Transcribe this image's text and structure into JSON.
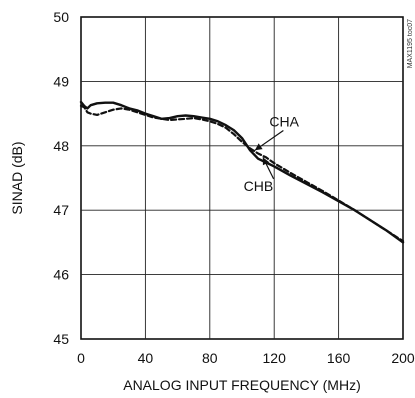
{
  "chart_data": {
    "type": "line",
    "title": "",
    "xlabel": "ANALOG INPUT FREQUENCY (MHz)",
    "ylabel": "SINAD (dB)",
    "xlim": [
      0,
      200
    ],
    "ylim": [
      45,
      50
    ],
    "x_ticks": [
      0,
      40,
      80,
      120,
      160,
      200
    ],
    "y_ticks": [
      45,
      46,
      47,
      48,
      49,
      50
    ],
    "grid": true,
    "watermark": "MAX1195 toc07",
    "series": [
      {
        "name": "CHA",
        "style": "dashed",
        "color": "#111111",
        "points": [
          [
            0,
            48.62
          ],
          [
            2,
            48.6
          ],
          [
            4,
            48.52
          ],
          [
            6,
            48.5
          ],
          [
            10,
            48.48
          ],
          [
            15,
            48.52
          ],
          [
            20,
            48.56
          ],
          [
            25,
            48.58
          ],
          [
            30,
            48.56
          ],
          [
            35,
            48.52
          ],
          [
            40,
            48.48
          ],
          [
            45,
            48.44
          ],
          [
            50,
            48.42
          ],
          [
            55,
            48.4
          ],
          [
            60,
            48.41
          ],
          [
            65,
            48.42
          ],
          [
            70,
            48.43
          ],
          [
            75,
            48.41
          ],
          [
            80,
            48.38
          ],
          [
            85,
            48.34
          ],
          [
            90,
            48.28
          ],
          [
            95,
            48.18
          ],
          [
            100,
            48.06
          ],
          [
            105,
            47.96
          ],
          [
            110,
            47.88
          ],
          [
            115,
            47.82
          ],
          [
            120,
            47.73
          ],
          [
            130,
            47.58
          ],
          [
            140,
            47.44
          ],
          [
            150,
            47.3
          ],
          [
            160,
            47.15
          ],
          [
            170,
            47.0
          ],
          [
            180,
            46.84
          ],
          [
            190,
            46.68
          ],
          [
            200,
            46.52
          ]
        ]
      },
      {
        "name": "CHB",
        "style": "solid",
        "color": "#111111",
        "points": [
          [
            0,
            48.68
          ],
          [
            2,
            48.62
          ],
          [
            4,
            48.58
          ],
          [
            6,
            48.63
          ],
          [
            10,
            48.66
          ],
          [
            15,
            48.67
          ],
          [
            20,
            48.67
          ],
          [
            25,
            48.63
          ],
          [
            30,
            48.58
          ],
          [
            35,
            48.55
          ],
          [
            40,
            48.5
          ],
          [
            45,
            48.46
          ],
          [
            50,
            48.42
          ],
          [
            55,
            48.43
          ],
          [
            60,
            48.46
          ],
          [
            65,
            48.47
          ],
          [
            70,
            48.46
          ],
          [
            75,
            48.44
          ],
          [
            80,
            48.42
          ],
          [
            85,
            48.38
          ],
          [
            90,
            48.32
          ],
          [
            95,
            48.24
          ],
          [
            100,
            48.12
          ],
          [
            105,
            47.93
          ],
          [
            110,
            47.8
          ],
          [
            115,
            47.74
          ],
          [
            120,
            47.68
          ],
          [
            130,
            47.54
          ],
          [
            140,
            47.41
          ],
          [
            150,
            47.28
          ],
          [
            160,
            47.14
          ],
          [
            170,
            47.0
          ],
          [
            180,
            46.84
          ],
          [
            190,
            46.68
          ],
          [
            200,
            46.5
          ]
        ]
      }
    ],
    "annotations": [
      {
        "text": "CHA",
        "text_at": [
          117,
          48.3
        ],
        "arrow_to": [
          108,
          47.93
        ]
      },
      {
        "text": "CHB",
        "text_at": [
          101,
          47.3
        ],
        "arrow_to": [
          113,
          47.82
        ]
      }
    ]
  }
}
